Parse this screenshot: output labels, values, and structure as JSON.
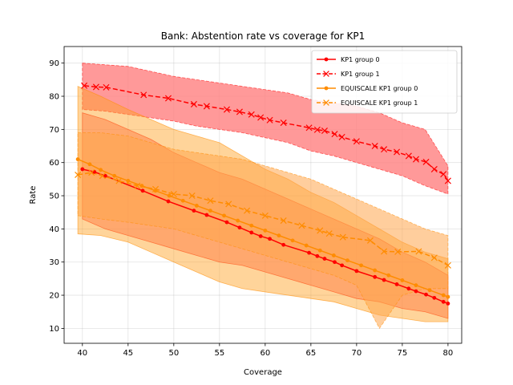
{
  "chart_data": {
    "type": "line",
    "title": "Bank: Abstention rate vs coverage for KP1",
    "xlabel": "Coverage",
    "ylabel": "Rate",
    "xlim": [
      38,
      81.5
    ],
    "ylim": [
      5.5,
      95
    ],
    "xticks": [
      40,
      45,
      50,
      55,
      60,
      65,
      70,
      75,
      80
    ],
    "yticks": [
      10,
      20,
      30,
      40,
      50,
      60,
      70,
      80,
      90
    ],
    "grid": true,
    "legend_position": "top-right",
    "series": [
      {
        "name": "KP1 group 0",
        "color": "#ff0000",
        "linestyle": "solid",
        "marker": "dot",
        "x": [
          40.0,
          41.3,
          42.5,
          46.6,
          49.4,
          52.2,
          53.6,
          55.8,
          57.2,
          58.5,
          59.5,
          60.5,
          62.0,
          64.8,
          65.7,
          66.5,
          67.6,
          68.4,
          70.0,
          72.0,
          73.0,
          74.4,
          75.7,
          76.5,
          77.6,
          78.5,
          79.5,
          80.0
        ],
        "y": [
          58.0,
          57.2,
          56.0,
          51.5,
          48.3,
          45.5,
          44.2,
          42.0,
          40.4,
          38.9,
          37.8,
          37.0,
          35.2,
          32.8,
          31.8,
          31.0,
          30.0,
          29.0,
          27.3,
          25.5,
          24.6,
          23.3,
          22.0,
          21.2,
          20.2,
          19.2,
          18.0,
          17.5
        ],
        "band_x": [
          40,
          42.5,
          45,
          47.5,
          50,
          52.5,
          55,
          57.5,
          60,
          62.5,
          65,
          67.5,
          70,
          72.5,
          75,
          77.5,
          80
        ],
        "band_upper": [
          75,
          73,
          70,
          67,
          63,
          60,
          57,
          55,
          52,
          49,
          46,
          43,
          40,
          37,
          33,
          30,
          26
        ],
        "band_lower": [
          43,
          40,
          38,
          36,
          34,
          32,
          30,
          29,
          27,
          25,
          23,
          21,
          19,
          18,
          16,
          15,
          13
        ]
      },
      {
        "name": "KP1 group 1",
        "color": "#ff0000",
        "linestyle": "dashed",
        "marker": "x",
        "x": [
          40.2,
          41.5,
          42.6,
          46.7,
          49.4,
          52.2,
          53.6,
          55.8,
          57.2,
          58.5,
          59.5,
          60.5,
          62.0,
          64.8,
          65.7,
          66.5,
          67.6,
          68.4,
          70.0,
          72.0,
          73.0,
          74.4,
          75.7,
          76.5,
          77.6,
          78.5,
          79.5,
          80.0
        ],
        "y": [
          83.2,
          82.8,
          82.7,
          80.4,
          79.4,
          77.6,
          77.0,
          76.0,
          75.3,
          74.5,
          73.6,
          72.8,
          72.0,
          70.5,
          69.9,
          69.6,
          68.6,
          67.7,
          66.4,
          65.0,
          64.0,
          63.2,
          62.0,
          61.0,
          60.2,
          58.0,
          56.5,
          54.5
        ],
        "band_x": [
          40,
          42.5,
          45,
          47.5,
          50,
          52.5,
          55,
          57.5,
          60,
          62.5,
          65,
          67.5,
          70,
          72.5,
          75,
          77.5,
          80
        ],
        "band_upper": [
          90,
          89.5,
          89,
          87.5,
          86,
          85,
          84,
          83,
          82,
          81,
          79,
          78,
          77,
          75,
          72,
          70,
          59
        ],
        "band_lower": [
          76,
          75.5,
          74.5,
          73.5,
          72.5,
          71,
          70,
          69,
          67.5,
          66,
          63.5,
          62,
          60,
          58,
          56,
          53,
          50.5
        ]
      },
      {
        "name": "EQUISCALE KP1 group 0",
        "color": "#ff8c00",
        "linestyle": "solid",
        "marker": "dot",
        "x": [
          39.5,
          40.8,
          42.0,
          43.5,
          45.0,
          46.5,
          48.0,
          49.5,
          51.0,
          52.5,
          54.0,
          55.5,
          57.0,
          58.5,
          60.0,
          61.5,
          63.0,
          64.5,
          66.0,
          67.5,
          69.0,
          70.5,
          72.0,
          73.5,
          75.0,
          76.5,
          78.0,
          79.5,
          80.0
        ],
        "y": [
          61.0,
          59.5,
          57.8,
          56.0,
          54.5,
          53.0,
          51.5,
          50.0,
          48.5,
          47.0,
          45.5,
          44.0,
          42.5,
          41.0,
          39.5,
          38.0,
          36.5,
          35.0,
          33.5,
          32.0,
          30.5,
          29.0,
          27.5,
          26.0,
          24.5,
          23.0,
          21.5,
          20.0,
          19.5
        ],
        "band_x": [
          39.5,
          42,
          45,
          47.5,
          50,
          52.5,
          55,
          57.5,
          60,
          62.5,
          65,
          67.5,
          70,
          72.5,
          75,
          77.5,
          80
        ],
        "band_upper": [
          83,
          80,
          76,
          73,
          70,
          68,
          66,
          62,
          58,
          55,
          51,
          48,
          44,
          40,
          36,
          33,
          31
        ],
        "band_lower": [
          38.5,
          38,
          36,
          33,
          30,
          27,
          24,
          22,
          21,
          20,
          19,
          18,
          16,
          14,
          13,
          12,
          12
        ]
      },
      {
        "name": "EQUISCALE KP1 group 1",
        "color": "#ff8c00",
        "linestyle": "dashed",
        "marker": "x",
        "x": [
          39.5,
          41.0,
          42.2,
          44.0,
          46.0,
          48.0,
          50.0,
          52.0,
          54.0,
          56.0,
          58.0,
          60.0,
          62.0,
          64.0,
          66.0,
          67.0,
          68.5,
          71.5,
          73.0,
          74.5,
          76.8,
          78.5,
          80.0
        ],
        "y": [
          56.3,
          57.0,
          56.0,
          54.5,
          53.0,
          52.0,
          50.5,
          50.0,
          48.5,
          47.5,
          45.5,
          44.0,
          42.5,
          41.0,
          39.5,
          38.6,
          37.5,
          36.5,
          33.2,
          33.1,
          33.2,
          31.3,
          29.0
        ],
        "band_x": [
          39.5,
          42,
          45,
          47.5,
          50,
          52.5,
          55,
          57.5,
          60,
          62.5,
          65,
          67.5,
          70,
          72.5,
          75,
          77.5,
          80
        ],
        "band_upper": [
          69,
          69,
          68,
          66,
          64,
          63,
          62,
          61,
          59,
          57,
          55,
          52,
          49,
          46,
          43,
          40,
          38
        ],
        "band_lower": [
          44,
          43,
          42,
          41,
          40,
          38,
          36,
          34,
          32,
          30,
          28,
          26,
          23,
          10,
          20,
          22,
          22
        ]
      }
    ]
  }
}
